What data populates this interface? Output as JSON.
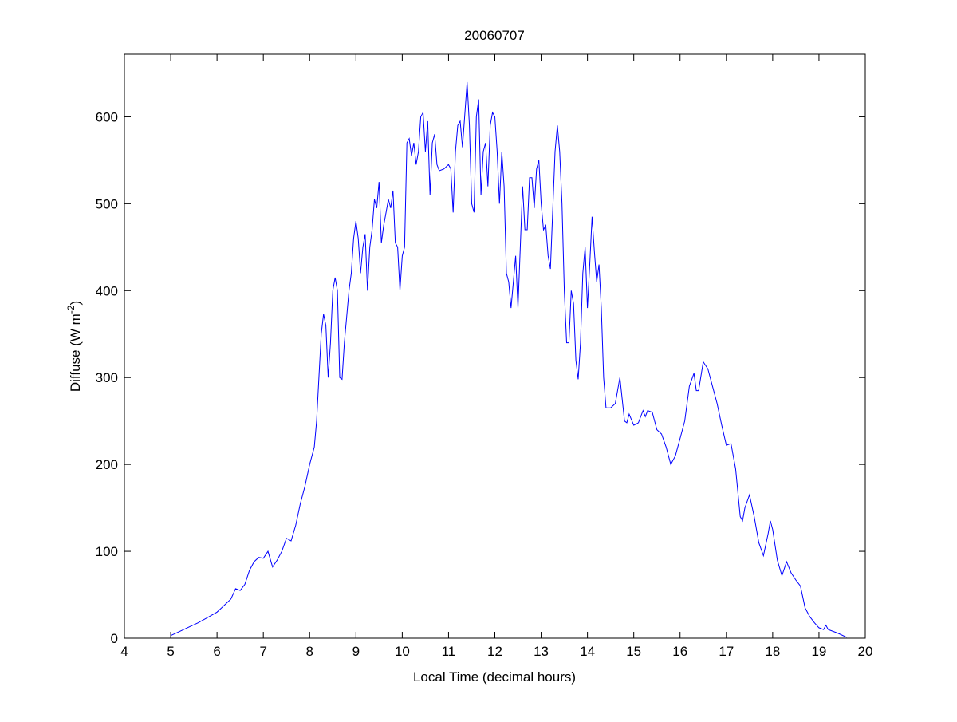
{
  "chart_data": {
    "type": "line",
    "title": "20060707",
    "xlabel": "Local Time (decimal hours)",
    "ylabel_main": "Diffuse (W m",
    "ylabel_sup": "-2",
    "ylabel_close": ")",
    "xlim": [
      4,
      20
    ],
    "ylim": [
      0,
      672
    ],
    "xticks": [
      4,
      5,
      6,
      7,
      8,
      9,
      10,
      11,
      12,
      13,
      14,
      15,
      16,
      17,
      18,
      19,
      20
    ],
    "yticks": [
      0,
      100,
      200,
      300,
      400,
      500,
      600
    ],
    "grid": false,
    "line_color": "#0000ff",
    "series": [
      {
        "points": [
          [
            5.0,
            3
          ],
          [
            5.2,
            8
          ],
          [
            5.4,
            13
          ],
          [
            5.6,
            18
          ],
          [
            5.8,
            24
          ],
          [
            6.0,
            30
          ],
          [
            6.2,
            40
          ],
          [
            6.3,
            45
          ],
          [
            6.4,
            57
          ],
          [
            6.5,
            55
          ],
          [
            6.6,
            62
          ],
          [
            6.7,
            78
          ],
          [
            6.8,
            88
          ],
          [
            6.9,
            93
          ],
          [
            7.0,
            92
          ],
          [
            7.1,
            100
          ],
          [
            7.2,
            82
          ],
          [
            7.3,
            90
          ],
          [
            7.4,
            100
          ],
          [
            7.5,
            115
          ],
          [
            7.6,
            112
          ],
          [
            7.7,
            130
          ],
          [
            7.8,
            155
          ],
          [
            7.9,
            175
          ],
          [
            8.0,
            200
          ],
          [
            8.1,
            220
          ],
          [
            8.15,
            250
          ],
          [
            8.2,
            300
          ],
          [
            8.25,
            350
          ],
          [
            8.3,
            373
          ],
          [
            8.35,
            360
          ],
          [
            8.4,
            300
          ],
          [
            8.45,
            340
          ],
          [
            8.5,
            400
          ],
          [
            8.55,
            415
          ],
          [
            8.6,
            400
          ],
          [
            8.65,
            300
          ],
          [
            8.7,
            298
          ],
          [
            8.75,
            340
          ],
          [
            8.8,
            370
          ],
          [
            8.85,
            400
          ],
          [
            8.9,
            420
          ],
          [
            8.95,
            460
          ],
          [
            9.0,
            480
          ],
          [
            9.05,
            460
          ],
          [
            9.1,
            420
          ],
          [
            9.15,
            450
          ],
          [
            9.2,
            465
          ],
          [
            9.25,
            400
          ],
          [
            9.3,
            450
          ],
          [
            9.35,
            470
          ],
          [
            9.4,
            505
          ],
          [
            9.45,
            495
          ],
          [
            9.5,
            525
          ],
          [
            9.55,
            455
          ],
          [
            9.6,
            475
          ],
          [
            9.65,
            490
          ],
          [
            9.7,
            505
          ],
          [
            9.75,
            495
          ],
          [
            9.8,
            515
          ],
          [
            9.85,
            455
          ],
          [
            9.9,
            450
          ],
          [
            9.95,
            400
          ],
          [
            10.0,
            440
          ],
          [
            10.05,
            450
          ],
          [
            10.1,
            570
          ],
          [
            10.15,
            575
          ],
          [
            10.2,
            555
          ],
          [
            10.25,
            570
          ],
          [
            10.3,
            545
          ],
          [
            10.35,
            560
          ],
          [
            10.4,
            600
          ],
          [
            10.45,
            605
          ],
          [
            10.5,
            560
          ],
          [
            10.55,
            595
          ],
          [
            10.6,
            510
          ],
          [
            10.65,
            570
          ],
          [
            10.7,
            580
          ],
          [
            10.75,
            545
          ],
          [
            10.8,
            538
          ],
          [
            10.9,
            540
          ],
          [
            11.0,
            545
          ],
          [
            11.05,
            540
          ],
          [
            11.1,
            490
          ],
          [
            11.15,
            560
          ],
          [
            11.2,
            590
          ],
          [
            11.25,
            595
          ],
          [
            11.3,
            565
          ],
          [
            11.4,
            640
          ],
          [
            11.45,
            590
          ],
          [
            11.5,
            500
          ],
          [
            11.55,
            490
          ],
          [
            11.6,
            600
          ],
          [
            11.65,
            620
          ],
          [
            11.7,
            510
          ],
          [
            11.75,
            560
          ],
          [
            11.8,
            570
          ],
          [
            11.85,
            520
          ],
          [
            11.9,
            590
          ],
          [
            11.95,
            605
          ],
          [
            12.0,
            600
          ],
          [
            12.05,
            560
          ],
          [
            12.1,
            500
          ],
          [
            12.15,
            560
          ],
          [
            12.2,
            520
          ],
          [
            12.25,
            420
          ],
          [
            12.3,
            410
          ],
          [
            12.35,
            380
          ],
          [
            12.4,
            410
          ],
          [
            12.45,
            440
          ],
          [
            12.5,
            380
          ],
          [
            12.55,
            450
          ],
          [
            12.6,
            520
          ],
          [
            12.65,
            470
          ],
          [
            12.7,
            470
          ],
          [
            12.75,
            530
          ],
          [
            12.8,
            530
          ],
          [
            12.85,
            495
          ],
          [
            12.9,
            540
          ],
          [
            12.95,
            550
          ],
          [
            13.0,
            500
          ],
          [
            13.05,
            470
          ],
          [
            13.1,
            475
          ],
          [
            13.15,
            440
          ],
          [
            13.2,
            425
          ],
          [
            13.3,
            560
          ],
          [
            13.35,
            590
          ],
          [
            13.4,
            560
          ],
          [
            13.45,
            500
          ],
          [
            13.5,
            400
          ],
          [
            13.55,
            340
          ],
          [
            13.6,
            340
          ],
          [
            13.65,
            400
          ],
          [
            13.7,
            385
          ],
          [
            13.75,
            320
          ],
          [
            13.8,
            298
          ],
          [
            13.85,
            340
          ],
          [
            13.9,
            420
          ],
          [
            13.95,
            450
          ],
          [
            14.0,
            380
          ],
          [
            14.05,
            430
          ],
          [
            14.1,
            485
          ],
          [
            14.15,
            445
          ],
          [
            14.2,
            410
          ],
          [
            14.25,
            430
          ],
          [
            14.3,
            380
          ],
          [
            14.35,
            300
          ],
          [
            14.4,
            265
          ],
          [
            14.5,
            265
          ],
          [
            14.6,
            270
          ],
          [
            14.7,
            300
          ],
          [
            14.8,
            250
          ],
          [
            14.85,
            248
          ],
          [
            14.9,
            258
          ],
          [
            15.0,
            245
          ],
          [
            15.1,
            248
          ],
          [
            15.2,
            262
          ],
          [
            15.25,
            255
          ],
          [
            15.3,
            262
          ],
          [
            15.4,
            260
          ],
          [
            15.5,
            240
          ],
          [
            15.6,
            235
          ],
          [
            15.7,
            220
          ],
          [
            15.8,
            200
          ],
          [
            15.9,
            210
          ],
          [
            16.0,
            230
          ],
          [
            16.1,
            250
          ],
          [
            16.2,
            290
          ],
          [
            16.3,
            305
          ],
          [
            16.35,
            285
          ],
          [
            16.4,
            285
          ],
          [
            16.5,
            318
          ],
          [
            16.6,
            310
          ],
          [
            16.7,
            290
          ],
          [
            16.8,
            270
          ],
          [
            16.9,
            245
          ],
          [
            17.0,
            222
          ],
          [
            17.1,
            224
          ],
          [
            17.2,
            195
          ],
          [
            17.3,
            140
          ],
          [
            17.35,
            135
          ],
          [
            17.4,
            150
          ],
          [
            17.5,
            165
          ],
          [
            17.6,
            140
          ],
          [
            17.7,
            110
          ],
          [
            17.8,
            95
          ],
          [
            17.9,
            120
          ],
          [
            17.95,
            135
          ],
          [
            18.0,
            125
          ],
          [
            18.1,
            90
          ],
          [
            18.2,
            72
          ],
          [
            18.3,
            88
          ],
          [
            18.4,
            75
          ],
          [
            18.5,
            67
          ],
          [
            18.6,
            60
          ],
          [
            18.7,
            35
          ],
          [
            18.8,
            25
          ],
          [
            18.9,
            18
          ],
          [
            19.0,
            12
          ],
          [
            19.1,
            10
          ],
          [
            19.15,
            15
          ],
          [
            19.2,
            10
          ],
          [
            19.4,
            6
          ],
          [
            19.6,
            1
          ]
        ]
      }
    ]
  }
}
